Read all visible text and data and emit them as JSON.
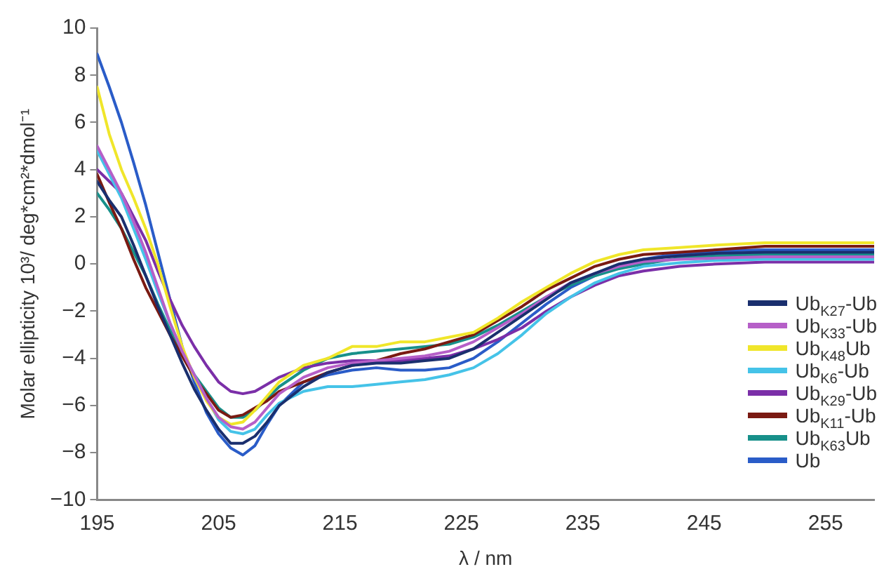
{
  "chart_data": {
    "type": "line",
    "xlabel": "λ / nm",
    "ylabel": "Molar ellipticity 10³/ deg*cm²*dmol⁻¹",
    "x": [
      195,
      196,
      197,
      198,
      199,
      200,
      201,
      202,
      203,
      204,
      205,
      206,
      207,
      208,
      209,
      210,
      212,
      214,
      216,
      218,
      220,
      222,
      224,
      226,
      228,
      230,
      232,
      234,
      236,
      238,
      240,
      243,
      246,
      250,
      255,
      259
    ],
    "xlim": [
      195,
      259
    ],
    "xticks": [
      195,
      205,
      215,
      225,
      235,
      245,
      255
    ],
    "ylim": [
      -10,
      10
    ],
    "yticks": [
      -10,
      -8,
      -6,
      -4,
      -2,
      0,
      2,
      4,
      6,
      8,
      10
    ],
    "legend": "right",
    "marker": "none",
    "line_style": "solid",
    "series": [
      {
        "name": "Ub$_{K27}$-Ub",
        "color": "#1a2f6e",
        "values": [
          3.5,
          2.7,
          2,
          0.8,
          -0.5,
          -1.8,
          -3,
          -4.2,
          -5.3,
          -6.2,
          -7,
          -7.6,
          -7.6,
          -7.3,
          -6.7,
          -6,
          -5.2,
          -4.6,
          -4.3,
          -4.2,
          -4.2,
          -4.1,
          -4,
          -3.6,
          -2.9,
          -2.2,
          -1.5,
          -0.8,
          -0.4,
          0,
          0.2,
          0.35,
          0.45,
          0.5,
          0.5,
          0.5
        ]
      },
      {
        "name": "Ub$_{K33}$-Ub",
        "color": "#b65fc8",
        "values": [
          5,
          4,
          3,
          1.8,
          0.5,
          -1,
          -2.5,
          -3.7,
          -4.7,
          -5.7,
          -6.5,
          -6.9,
          -7,
          -6.7,
          -6.1,
          -5.5,
          -4.8,
          -4.4,
          -4.2,
          -4.1,
          -4,
          -3.9,
          -3.7,
          -3.3,
          -2.7,
          -2.1,
          -1.4,
          -0.8,
          -0.4,
          -0.1,
          0.1,
          0.2,
          0.25,
          0.3,
          0.3,
          0.3
        ]
      },
      {
        "name": "Ub$_{K48}$Ub",
        "color": "#f0e62a",
        "values": [
          7.5,
          5.5,
          4,
          2.8,
          1.5,
          0,
          -1.8,
          -3.5,
          -4.8,
          -5.8,
          -6.5,
          -6.8,
          -6.7,
          -6.2,
          -5.6,
          -5,
          -4.3,
          -4,
          -3.5,
          -3.5,
          -3.3,
          -3.3,
          -3.1,
          -2.9,
          -2.3,
          -1.6,
          -1,
          -0.4,
          0.1,
          0.4,
          0.6,
          0.7,
          0.8,
          0.9,
          0.9,
          0.9
        ]
      },
      {
        "name": "Ub$_{K6}$-Ub",
        "color": "#45c3e8",
        "values": [
          4.8,
          3.8,
          2.8,
          1.5,
          0.2,
          -1.2,
          -2.5,
          -3.7,
          -4.7,
          -5.7,
          -6.6,
          -7.1,
          -7.2,
          -7,
          -6.4,
          -5.9,
          -5.4,
          -5.2,
          -5.2,
          -5.1,
          -5,
          -4.9,
          -4.7,
          -4.4,
          -3.8,
          -3,
          -2.1,
          -1.4,
          -0.8,
          -0.4,
          -0.1,
          0.05,
          0.15,
          0.2,
          0.2,
          0.2
        ]
      },
      {
        "name": "Ub$_{K29}$-Ub",
        "color": "#7b2fa8",
        "values": [
          4,
          3.5,
          3,
          2,
          1,
          -0.3,
          -1.5,
          -2.6,
          -3.5,
          -4.3,
          -5,
          -5.4,
          -5.5,
          -5.4,
          -5.1,
          -4.8,
          -4.4,
          -4.2,
          -4.1,
          -4.1,
          -4.1,
          -4,
          -3.9,
          -3.6,
          -3.2,
          -2.7,
          -2,
          -1.4,
          -0.9,
          -0.5,
          -0.3,
          -0.1,
          0,
          0.08,
          0.08,
          0.08
        ]
      },
      {
        "name": "Ub$_{K11}$-Ub",
        "color": "#7a1a12",
        "values": [
          3.8,
          2.6,
          1.5,
          0.2,
          -1,
          -2,
          -3,
          -3.9,
          -4.8,
          -5.5,
          -6.2,
          -6.5,
          -6.4,
          -6.1,
          -5.8,
          -5.4,
          -5,
          -4.6,
          -4.3,
          -4.1,
          -3.8,
          -3.6,
          -3.3,
          -3,
          -2.4,
          -1.8,
          -1.1,
          -0.6,
          -0.1,
          0.2,
          0.4,
          0.5,
          0.6,
          0.75,
          0.75,
          0.75
        ]
      },
      {
        "name": "Ub$_{K63}$Ub",
        "color": "#17908a",
        "values": [
          3,
          2.3,
          1.5,
          0.5,
          -0.5,
          -1.7,
          -2.8,
          -3.8,
          -4.7,
          -5.4,
          -6.1,
          -6.5,
          -6.5,
          -6.2,
          -5.7,
          -5.2,
          -4.5,
          -4,
          -3.8,
          -3.7,
          -3.6,
          -3.5,
          -3.4,
          -3.1,
          -2.6,
          -2,
          -1.4,
          -0.9,
          -0.5,
          -0.2,
          0,
          0.25,
          0.35,
          0.4,
          0.4,
          0.4
        ]
      },
      {
        "name": "Ub",
        "color": "#2a5cc8",
        "values": [
          8.9,
          7.5,
          6,
          4.3,
          2.5,
          0.5,
          -1.5,
          -3.5,
          -5,
          -6.3,
          -7.2,
          -7.8,
          -8.1,
          -7.7,
          -6.8,
          -6,
          -5,
          -4.7,
          -4.5,
          -4.4,
          -4.5,
          -4.5,
          -4.4,
          -4,
          -3.3,
          -2.5,
          -1.7,
          -1,
          -0.5,
          -0.1,
          0.2,
          0.45,
          0.55,
          0.6,
          0.6,
          0.6
        ]
      }
    ]
  }
}
